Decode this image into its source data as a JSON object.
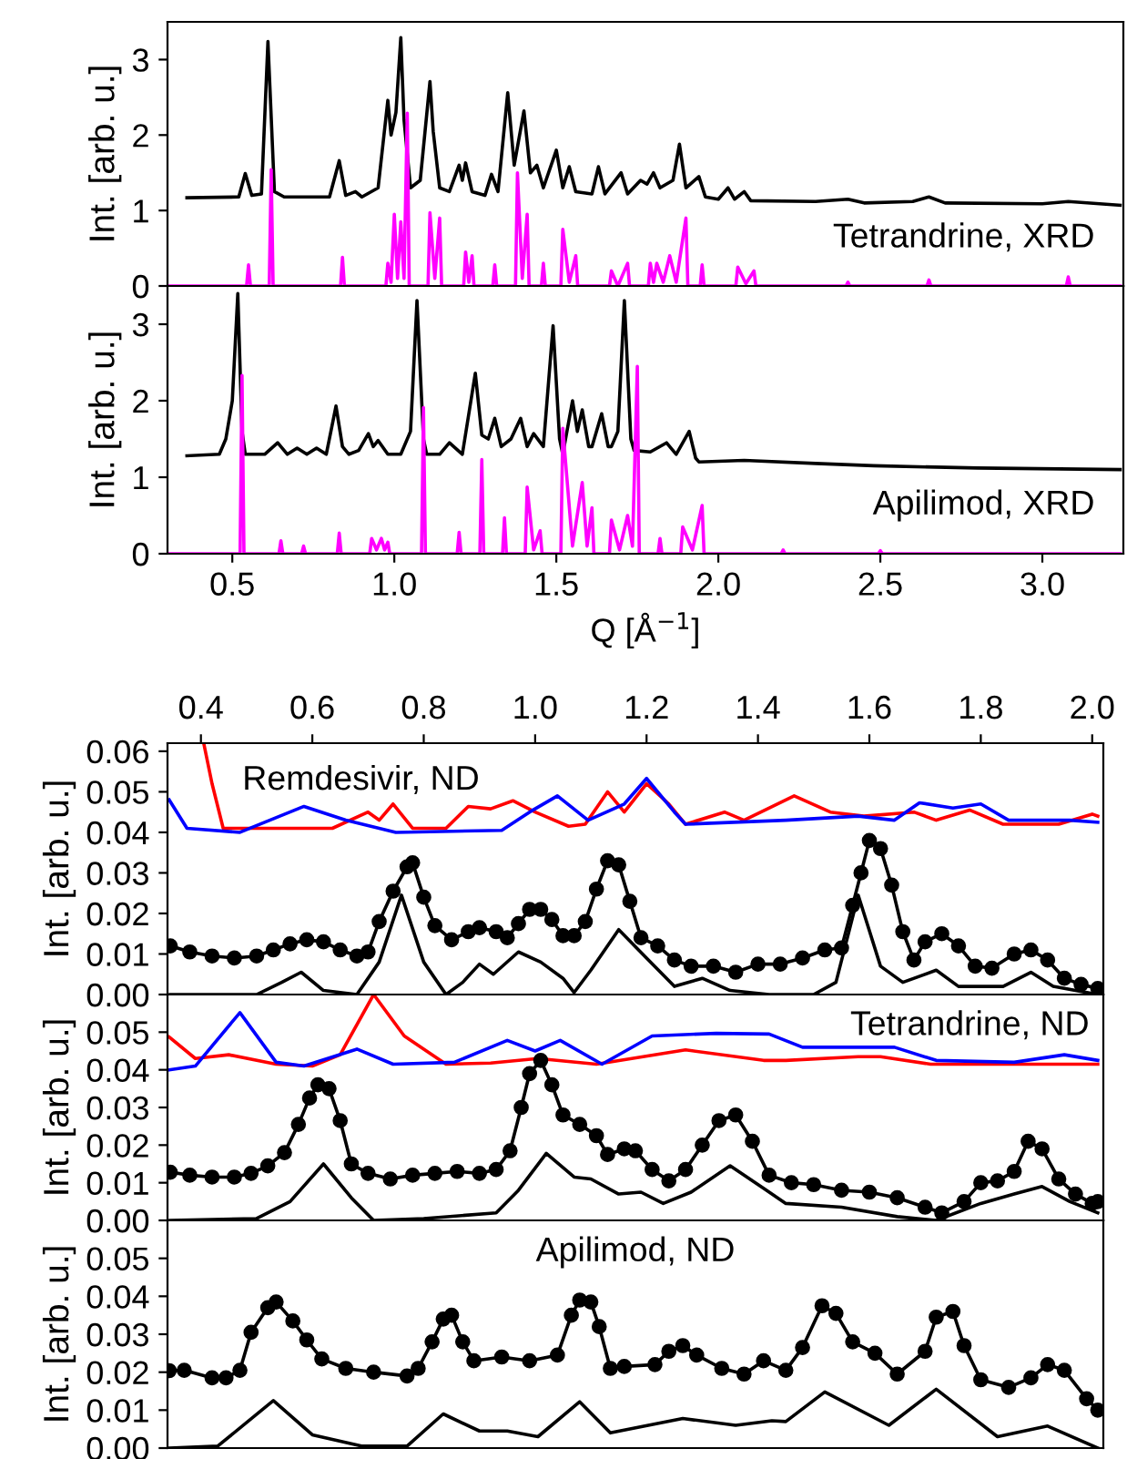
{
  "chart_data": [
    {
      "type": "line",
      "ylabel": "Int. [arb. u.]",
      "annotations": [
        "Tetrandrine, XRD"
      ],
      "xlim": [
        0.3,
        3.25
      ],
      "ylim": [
        0,
        3.5
      ],
      "xticks": [
        {
          "value": 0.5,
          "label": null
        },
        {
          "value": 1.0,
          "label": null
        },
        {
          "value": 1.5,
          "label": null
        },
        {
          "value": 2.0,
          "label": null
        },
        {
          "value": 2.5,
          "label": null
        },
        {
          "value": 3.0,
          "label": null
        }
      ],
      "yticks": [
        0,
        1,
        2,
        3
      ],
      "tick_labels": "y",
      "series": [
        {
          "color": "#000000",
          "x": [
            0.36,
            0.52,
            0.54,
            0.56,
            0.59,
            0.61,
            0.63,
            0.66,
            0.8,
            0.83,
            0.85,
            0.88,
            0.9,
            0.95,
            0.98,
            0.99,
            0.995,
            1.005,
            1.02,
            1.03,
            1.05,
            1.08,
            1.11,
            1.12,
            1.14,
            1.17,
            1.2,
            1.21,
            1.22,
            1.24,
            1.28,
            1.3,
            1.32,
            1.35,
            1.37,
            1.4,
            1.42,
            1.44,
            1.46,
            1.5,
            1.52,
            1.54,
            1.56,
            1.61,
            1.63,
            1.65,
            1.7,
            1.72,
            1.76,
            1.78,
            1.8,
            1.82,
            1.86,
            1.88,
            1.9,
            1.94,
            1.96,
            2.0,
            2.03,
            2.05,
            2.08,
            2.1,
            2.3,
            2.4,
            2.45,
            2.6,
            2.65,
            2.7,
            3.0,
            3.08,
            3.24
          ],
          "values": [
            1.17,
            1.18,
            1.49,
            1.2,
            1.22,
            3.24,
            1.25,
            1.18,
            1.18,
            1.66,
            1.2,
            1.25,
            1.18,
            1.3,
            2.46,
            2.0,
            2.1,
            2.3,
            3.29,
            2.2,
            1.3,
            1.4,
            2.71,
            2.05,
            1.3,
            1.25,
            1.6,
            1.4,
            1.63,
            1.25,
            1.2,
            1.48,
            1.25,
            2.56,
            1.6,
            2.32,
            1.5,
            1.6,
            1.3,
            1.8,
            1.3,
            1.58,
            1.25,
            1.22,
            1.58,
            1.22,
            1.5,
            1.22,
            1.4,
            1.35,
            1.5,
            1.3,
            1.4,
            1.88,
            1.3,
            1.45,
            1.18,
            1.15,
            1.3,
            1.15,
            1.25,
            1.13,
            1.12,
            1.15,
            1.1,
            1.12,
            1.18,
            1.1,
            1.09,
            1.12,
            1.07
          ]
        },
        {
          "color": "#ff00ff",
          "x": [
            0.3,
            0.544,
            0.55,
            0.556,
            0.614,
            0.62,
            0.626,
            0.834,
            0.84,
            0.846,
            0.974,
            0.98,
            0.99,
            1.0,
            1.01,
            1.02,
            1.03,
            1.04,
            1.046,
            1.104,
            1.11,
            1.125,
            1.14,
            1.146,
            1.214,
            1.22,
            1.23,
            1.24,
            1.246,
            1.304,
            1.31,
            1.316,
            1.374,
            1.38,
            1.395,
            1.41,
            1.416,
            1.454,
            1.46,
            1.466,
            1.514,
            1.52,
            1.54,
            1.56,
            1.566,
            1.664,
            1.67,
            1.69,
            1.72,
            1.726,
            1.784,
            1.79,
            1.8,
            1.81,
            1.83,
            1.85,
            1.87,
            1.9,
            1.906,
            1.944,
            1.95,
            1.956,
            2.054,
            2.06,
            2.085,
            2.11,
            2.116,
            2.394,
            2.4,
            2.406,
            2.644,
            2.65,
            2.656,
            3.074,
            3.08,
            3.086,
            3.24
          ],
          "values": [
            0,
            0,
            0.28,
            0,
            0,
            1.54,
            0,
            0,
            0.38,
            0,
            0,
            0.3,
            0.05,
            0.95,
            0.1,
            0.85,
            0.1,
            2.29,
            0,
            0,
            0.97,
            0.1,
            0.9,
            0,
            0,
            0.45,
            0.05,
            0.4,
            0,
            0,
            0.28,
            0,
            0,
            1.5,
            0.1,
            0.95,
            0,
            0,
            0.3,
            0,
            0,
            0.75,
            0.05,
            0.4,
            0,
            0,
            0.2,
            0,
            0.3,
            0,
            0,
            0.3,
            0.05,
            0.3,
            0.05,
            0.4,
            0.05,
            0.9,
            0,
            0,
            0.28,
            0,
            0,
            0.25,
            0.03,
            0.2,
            0,
            0,
            0.05,
            0,
            0,
            0.08,
            0,
            0,
            0.12,
            0,
            0
          ]
        }
      ]
    },
    {
      "type": "line",
      "xlabel": "Q [Å$^{−1}$]",
      "ylabel": "Int. [arb. u.]",
      "annotations": [
        "Apilimod, XRD"
      ],
      "xlim": [
        0.3,
        3.25
      ],
      "ylim": [
        0,
        3.5
      ],
      "xticks": [
        {
          "value": 0.5,
          "label": "0.5"
        },
        {
          "value": 1.0,
          "label": "1.0"
        },
        {
          "value": 1.5,
          "label": "1.5"
        },
        {
          "value": 2.0,
          "label": "2.0"
        },
        {
          "value": 2.5,
          "label": "2.5"
        },
        {
          "value": 3.0,
          "label": "3.0"
        }
      ],
      "yticks": [
        0,
        1,
        2,
        3
      ],
      "series": [
        {
          "color": "#000000",
          "x": [
            0.36,
            0.46,
            0.48,
            0.5,
            0.517,
            0.53,
            0.54,
            0.6,
            0.64,
            0.67,
            0.7,
            0.73,
            0.76,
            0.79,
            0.82,
            0.84,
            0.86,
            0.89,
            0.92,
            0.935,
            0.95,
            0.98,
            1.02,
            1.05,
            1.07,
            1.09,
            1.1,
            1.14,
            1.17,
            1.21,
            1.25,
            1.27,
            1.29,
            1.31,
            1.33,
            1.36,
            1.39,
            1.41,
            1.43,
            1.46,
            1.49,
            1.51,
            1.52,
            1.55,
            1.565,
            1.58,
            1.6,
            1.61,
            1.64,
            1.66,
            1.67,
            1.69,
            1.71,
            1.73,
            1.74,
            1.79,
            1.84,
            1.87,
            1.91,
            1.93,
            1.94,
            2.08,
            2.3,
            2.48,
            2.8,
            3.24
          ],
          "values": [
            1.28,
            1.3,
            1.5,
            2.0,
            3.4,
            1.6,
            1.3,
            1.3,
            1.45,
            1.3,
            1.38,
            1.3,
            1.38,
            1.3,
            1.93,
            1.4,
            1.3,
            1.35,
            1.57,
            1.4,
            1.48,
            1.3,
            1.3,
            1.6,
            3.31,
            1.5,
            1.3,
            1.3,
            1.45,
            1.3,
            2.36,
            1.55,
            1.5,
            1.77,
            1.4,
            1.5,
            1.77,
            1.4,
            1.57,
            1.4,
            2.98,
            1.5,
            1.3,
            2.0,
            1.6,
            1.88,
            1.4,
            1.4,
            1.83,
            1.4,
            1.4,
            1.6,
            3.31,
            1.5,
            1.35,
            1.33,
            1.45,
            1.3,
            1.6,
            1.25,
            1.2,
            1.22,
            1.18,
            1.15,
            1.12,
            1.1
          ]
        },
        {
          "color": "#ff00ff",
          "x": [
            0.3,
            0.524,
            0.53,
            0.536,
            0.644,
            0.65,
            0.656,
            0.714,
            0.72,
            0.726,
            0.824,
            0.83,
            0.836,
            0.924,
            0.93,
            0.945,
            0.96,
            0.97,
            0.98,
            0.986,
            1.084,
            1.09,
            1.096,
            1.194,
            1.2,
            1.206,
            1.264,
            1.27,
            1.276,
            1.334,
            1.34,
            1.346,
            1.404,
            1.41,
            1.43,
            1.45,
            1.456,
            1.514,
            1.52,
            1.55,
            1.58,
            1.595,
            1.61,
            1.616,
            1.664,
            1.67,
            1.695,
            1.72,
            1.735,
            1.75,
            1.756,
            1.814,
            1.82,
            1.826,
            1.884,
            1.89,
            1.92,
            1.95,
            1.956,
            2.194,
            2.2,
            2.206,
            2.494,
            2.5,
            2.506,
            3.24
          ],
          "values": [
            0,
            0,
            2.33,
            0,
            0,
            0.17,
            0,
            0,
            0.1,
            0,
            0,
            0.27,
            0,
            0,
            0.2,
            0.05,
            0.2,
            0.05,
            0.15,
            0,
            0,
            1.91,
            0,
            0,
            0.28,
            0,
            0,
            1.23,
            0,
            0,
            0.47,
            0,
            0,
            0.87,
            0.05,
            0.3,
            0,
            0,
            1.64,
            0.1,
            0.93,
            0.1,
            0.6,
            0,
            0,
            0.44,
            0.05,
            0.5,
            0.1,
            2.45,
            0,
            0,
            0.2,
            0,
            0,
            0.35,
            0.05,
            0.63,
            0,
            0,
            0.05,
            0,
            0,
            0.04,
            0,
            0
          ]
        }
      ]
    },
    {
      "type": "line",
      "ylabel": "Int. [arb. u.]",
      "annotations": [
        "Remdesivir, ND"
      ],
      "xlim": [
        0.34,
        2.02
      ],
      "xticks": [
        {
          "value": 0.4,
          "label": "0.4"
        },
        {
          "value": 0.6,
          "label": "0.6"
        },
        {
          "value": 0.8,
          "label": "0.8"
        },
        {
          "value": 1.0,
          "label": "1.0"
        },
        {
          "value": 1.2,
          "label": "1.2"
        },
        {
          "value": 1.4,
          "label": "1.4"
        },
        {
          "value": 1.6,
          "label": "1.6"
        },
        {
          "value": 1.8,
          "label": "1.8"
        },
        {
          "value": 2.0,
          "label": "2.0"
        }
      ],
      "ylim": [
        0,
        0.062
      ],
      "yticks": [
        {
          "value": 0,
          "label": "0.00"
        },
        {
          "value": 0.01,
          "label": "0.01"
        },
        {
          "value": 0.02,
          "label": "0.02"
        },
        {
          "value": 0.03,
          "label": "0.03"
        },
        {
          "value": 0.04,
          "label": "0.04"
        },
        {
          "value": 0.05,
          "label": "0.05"
        },
        {
          "value": 0.06,
          "label": "0.06"
        }
      ],
      "series": [
        {
          "color": "#ff0000",
          "x": [
            0.405,
            0.42,
            0.44,
            0.636,
            0.7,
            0.72,
            0.745,
            0.78,
            0.84,
            0.88,
            0.92,
            0.96,
            1.0,
            1.06,
            1.09,
            1.13,
            1.16,
            1.2,
            1.24,
            1.27,
            1.34,
            1.375,
            1.465,
            1.53,
            1.59,
            1.68,
            1.72,
            1.78,
            1.84,
            1.94,
            2.0,
            2.01
          ],
          "values": [
            0.062,
            0.052,
            0.041,
            0.041,
            0.045,
            0.043,
            0.047,
            0.041,
            0.041,
            0.0464,
            0.0458,
            0.0478,
            0.045,
            0.0415,
            0.042,
            0.05,
            0.045,
            0.052,
            0.047,
            0.042,
            0.045,
            0.043,
            0.049,
            0.045,
            0.044,
            0.045,
            0.043,
            0.0455,
            0.042,
            0.042,
            0.0445,
            0.044
          ]
        },
        {
          "color": "#0000ff",
          "x": [
            0.343,
            0.375,
            0.47,
            0.585,
            0.66,
            0.75,
            0.94,
            0.99,
            1.04,
            1.095,
            1.16,
            1.2,
            1.25,
            1.27,
            1.45,
            1.58,
            1.645,
            1.69,
            1.75,
            1.8,
            1.85,
            1.96,
            2.01
          ],
          "values": [
            0.048,
            0.041,
            0.04,
            0.0464,
            0.043,
            0.04,
            0.0405,
            0.045,
            0.049,
            0.043,
            0.047,
            0.0533,
            0.045,
            0.042,
            0.043,
            0.044,
            0.043,
            0.0473,
            0.046,
            0.047,
            0.043,
            0.043,
            0.0425
          ]
        },
        {
          "color": "#000000",
          "marker": "circle",
          "x": [
            0.345,
            0.38,
            0.42,
            0.46,
            0.5,
            0.53,
            0.56,
            0.59,
            0.62,
            0.65,
            0.68,
            0.7,
            0.72,
            0.745,
            0.77,
            0.78,
            0.8,
            0.82,
            0.85,
            0.88,
            0.9,
            0.93,
            0.95,
            0.97,
            0.99,
            1.01,
            1.03,
            1.05,
            1.07,
            1.09,
            1.11,
            1.13,
            1.15,
            1.17,
            1.19,
            1.22,
            1.25,
            1.28,
            1.32,
            1.36,
            1.4,
            1.44,
            1.48,
            1.52,
            1.55,
            1.57,
            1.585,
            1.6,
            1.62,
            1.64,
            1.66,
            1.68,
            1.7,
            1.73,
            1.76,
            1.79,
            1.82,
            1.86,
            1.89,
            1.92,
            1.95,
            1.98,
            2.01
          ],
          "values": [
            0.012,
            0.0105,
            0.0095,
            0.009,
            0.0095,
            0.011,
            0.0125,
            0.0135,
            0.013,
            0.011,
            0.0095,
            0.0105,
            0.018,
            0.0255,
            0.0315,
            0.0325,
            0.024,
            0.017,
            0.0135,
            0.0155,
            0.0165,
            0.0155,
            0.014,
            0.0175,
            0.021,
            0.021,
            0.0185,
            0.0145,
            0.0145,
            0.018,
            0.026,
            0.033,
            0.032,
            0.023,
            0.014,
            0.012,
            0.0085,
            0.007,
            0.007,
            0.0055,
            0.0075,
            0.0075,
            0.009,
            0.011,
            0.0115,
            0.022,
            0.03,
            0.038,
            0.036,
            0.027,
            0.0155,
            0.0085,
            0.013,
            0.015,
            0.012,
            0.007,
            0.0065,
            0.01,
            0.011,
            0.0085,
            0.004,
            0.0025,
            0.0015
          ]
        },
        {
          "color": "#000000",
          "x": [
            0.345,
            0.5,
            0.545,
            0.58,
            0.62,
            0.68,
            0.72,
            0.76,
            0.8,
            0.84,
            0.87,
            0.9,
            0.925,
            0.97,
            1.01,
            1.05,
            1.07,
            1.1,
            1.15,
            1.2,
            1.25,
            1.3,
            1.35,
            1.42,
            1.5,
            1.54,
            1.58,
            1.62,
            1.66,
            1.72,
            1.76,
            1.84,
            1.89,
            1.93,
            2.01
          ],
          "values": [
            0,
            0,
            0.003,
            0.0055,
            0.001,
            0,
            0.008,
            0.0245,
            0.008,
            0,
            0.003,
            0.0075,
            0.005,
            0.0105,
            0.008,
            0.004,
            0.0005,
            0.006,
            0.016,
            0.009,
            0.002,
            0.004,
            0.001,
            0,
            0,
            0.003,
            0.0245,
            0.007,
            0.003,
            0.006,
            0.002,
            0.002,
            0.0055,
            0.002,
            0
          ]
        }
      ]
    },
    {
      "type": "line",
      "ylabel": "Int. [arb. u.]",
      "annotations": [
        "Tetrandrine, ND"
      ],
      "xlim": [
        0.34,
        2.02
      ],
      "ylim": [
        0,
        0.06
      ],
      "yticks": [
        {
          "value": 0,
          "label": "0.00"
        },
        {
          "value": 0.01,
          "label": "0.01"
        },
        {
          "value": 0.02,
          "label": "0.02"
        },
        {
          "value": 0.03,
          "label": "0.03"
        },
        {
          "value": 0.04,
          "label": "0.04"
        },
        {
          "value": 0.05,
          "label": "0.05"
        }
      ],
      "tick_labels": "y",
      "series": [
        {
          "color": "#ff0000",
          "x": [
            0.343,
            0.39,
            0.45,
            0.535,
            0.6,
            0.65,
            0.71,
            0.765,
            0.84,
            0.92,
            1.005,
            1.11,
            1.27,
            1.41,
            1.45,
            1.58,
            1.62,
            1.71,
            2.01
          ],
          "values": [
            0.0487,
            0.043,
            0.044,
            0.0415,
            0.041,
            0.044,
            0.06,
            0.049,
            0.0415,
            0.0418,
            0.043,
            0.0415,
            0.0453,
            0.0425,
            0.0425,
            0.0435,
            0.0435,
            0.0415,
            0.0415
          ]
        },
        {
          "color": "#0000ff",
          "x": [
            0.343,
            0.39,
            0.47,
            0.535,
            0.585,
            0.68,
            0.745,
            0.855,
            0.95,
            1.0,
            1.045,
            1.12,
            1.21,
            1.325,
            1.42,
            1.48,
            1.645,
            1.72,
            1.86,
            1.95,
            2.01
          ],
          "values": [
            0.04,
            0.041,
            0.0552,
            0.042,
            0.041,
            0.0455,
            0.0415,
            0.042,
            0.0478,
            0.045,
            0.0478,
            0.0415,
            0.049,
            0.0497,
            0.0495,
            0.046,
            0.046,
            0.0425,
            0.042,
            0.044,
            0.0425
          ]
        },
        {
          "color": "#000000",
          "marker": "circle",
          "x": [
            0.345,
            0.38,
            0.42,
            0.46,
            0.49,
            0.52,
            0.55,
            0.575,
            0.595,
            0.61,
            0.63,
            0.65,
            0.67,
            0.7,
            0.74,
            0.78,
            0.82,
            0.86,
            0.9,
            0.93,
            0.955,
            0.975,
            0.99,
            1.01,
            1.03,
            1.05,
            1.08,
            1.11,
            1.13,
            1.16,
            1.18,
            1.21,
            1.24,
            1.27,
            1.3,
            1.33,
            1.36,
            1.39,
            1.42,
            1.46,
            1.5,
            1.55,
            1.6,
            1.65,
            1.7,
            1.73,
            1.77,
            1.8,
            1.83,
            1.86,
            1.885,
            1.91,
            1.94,
            1.97,
            2.0,
            2.01
          ],
          "values": [
            0.0128,
            0.012,
            0.0115,
            0.0115,
            0.0125,
            0.0145,
            0.018,
            0.0255,
            0.0325,
            0.036,
            0.035,
            0.0265,
            0.015,
            0.0125,
            0.011,
            0.012,
            0.0125,
            0.013,
            0.0125,
            0.0135,
            0.0185,
            0.03,
            0.039,
            0.0425,
            0.036,
            0.028,
            0.0255,
            0.0225,
            0.0175,
            0.019,
            0.0185,
            0.0135,
            0.0105,
            0.0135,
            0.02,
            0.0265,
            0.028,
            0.021,
            0.012,
            0.01,
            0.0095,
            0.008,
            0.0075,
            0.006,
            0.0035,
            0.002,
            0.005,
            0.01,
            0.0105,
            0.013,
            0.021,
            0.019,
            0.011,
            0.007,
            0.0045,
            0.005
          ]
        },
        {
          "color": "#000000",
          "x": [
            0.345,
            0.5,
            0.56,
            0.62,
            0.67,
            0.71,
            0.8,
            0.93,
            0.97,
            1.02,
            1.07,
            1.1,
            1.15,
            1.19,
            1.23,
            1.28,
            1.35,
            1.41,
            1.45,
            1.55,
            1.65,
            1.72,
            1.8,
            1.86,
            1.91,
            1.96,
            2.01
          ],
          "values": [
            0,
            0.0005,
            0.005,
            0.015,
            0.006,
            0,
            0.0005,
            0.002,
            0.008,
            0.0178,
            0.0115,
            0.011,
            0.007,
            0.0075,
            0.0045,
            0.0075,
            0.0145,
            0.0085,
            0.0045,
            0.0035,
            0.001,
            0,
            0.0045,
            0.007,
            0.009,
            0.005,
            0.002
          ]
        }
      ]
    },
    {
      "type": "line",
      "ylabel": "Int. [arb. u.]",
      "annotations": [
        "Apilimod, ND"
      ],
      "xlim": [
        0.34,
        2.02
      ],
      "ylim": [
        0,
        0.06
      ],
      "yticks": [
        {
          "value": 0,
          "label": "0.00"
        },
        {
          "value": 0.01,
          "label": "0.01"
        },
        {
          "value": 0.02,
          "label": "0.02"
        },
        {
          "value": 0.03,
          "label": "0.03"
        },
        {
          "value": 0.04,
          "label": "0.04"
        },
        {
          "value": 0.05,
          "label": "0.05"
        }
      ],
      "tick_labels": "y",
      "series": [
        {
          "color": "#000000",
          "marker": "circle",
          "x": [
            0.343,
            0.37,
            0.42,
            0.445,
            0.47,
            0.49,
            0.52,
            0.535,
            0.565,
            0.59,
            0.617,
            0.66,
            0.71,
            0.77,
            0.79,
            0.815,
            0.835,
            0.85,
            0.87,
            0.89,
            0.94,
            0.99,
            1.04,
            1.065,
            1.08,
            1.1,
            1.115,
            1.135,
            1.16,
            1.215,
            1.24,
            1.265,
            1.29,
            1.335,
            1.375,
            1.41,
            1.45,
            1.48,
            1.515,
            1.54,
            1.57,
            1.61,
            1.65,
            1.7,
            1.72,
            1.75,
            1.77,
            1.8,
            1.85,
            1.89,
            1.92,
            1.95,
            1.99,
            2.01
          ],
          "values": [
            0.0204,
            0.0205,
            0.0185,
            0.0185,
            0.0205,
            0.0305,
            0.037,
            0.0385,
            0.0335,
            0.0285,
            0.0235,
            0.021,
            0.02,
            0.019,
            0.021,
            0.028,
            0.034,
            0.035,
            0.028,
            0.023,
            0.024,
            0.023,
            0.0245,
            0.035,
            0.039,
            0.0385,
            0.032,
            0.021,
            0.0215,
            0.022,
            0.0255,
            0.027,
            0.0245,
            0.021,
            0.0195,
            0.023,
            0.0205,
            0.0265,
            0.0375,
            0.0355,
            0.028,
            0.025,
            0.0195,
            0.0255,
            0.0345,
            0.036,
            0.027,
            0.018,
            0.016,
            0.0185,
            0.022,
            0.0205,
            0.013,
            0.01
          ]
        },
        {
          "color": "#000000",
          "x": [
            0.343,
            0.43,
            0.53,
            0.6,
            0.69,
            0.77,
            0.835,
            0.9,
            0.95,
            1.005,
            1.08,
            1.135,
            1.265,
            1.36,
            1.425,
            1.45,
            1.52,
            1.635,
            1.72,
            1.83,
            1.92,
            2.01
          ],
          "values": [
            0,
            0.0005,
            0.0125,
            0.0035,
            0.0005,
            0.0005,
            0.009,
            0.0045,
            0.0045,
            0.003,
            0.0122,
            0.004,
            0.0078,
            0.006,
            0.0072,
            0.007,
            0.0148,
            0.006,
            0.0155,
            0.003,
            0.0058,
            0
          ]
        }
      ]
    }
  ]
}
